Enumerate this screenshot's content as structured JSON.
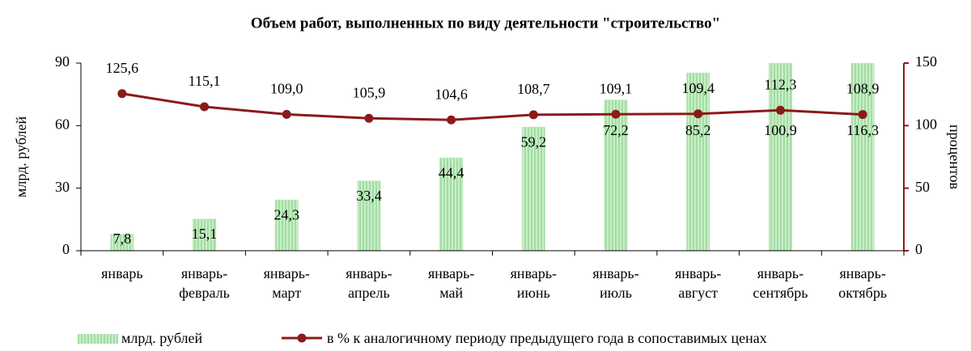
{
  "chart_data": {
    "type": "bar_line",
    "title": "Объем работ, выполненных по виду деятельности \"строительство\"",
    "ylabel": "млрд. рублей",
    "y2label": "процентов",
    "categories": [
      [
        "январь"
      ],
      [
        "январь-",
        "февраль"
      ],
      [
        "январь-",
        "март"
      ],
      [
        "январь-",
        "апрель"
      ],
      [
        "январь-",
        "май"
      ],
      [
        "январь-",
        "июнь"
      ],
      [
        "январь-",
        "июль"
      ],
      [
        "январь-",
        "август"
      ],
      [
        "январь-",
        "сентябрь"
      ],
      [
        "январь-",
        "октябрь"
      ]
    ],
    "series": [
      {
        "name": "млрд. рублей",
        "type": "bar",
        "color": "#b5e6b5",
        "values": [
          7.8,
          15.1,
          24.3,
          33.4,
          44.4,
          59.2,
          72.2,
          85.2,
          100.9,
          116.3
        ],
        "value_labels": [
          "7,8",
          "15,1",
          "24,3",
          "33,4",
          "44,4",
          "59,2",
          "72,2",
          "85,2",
          "100,9",
          "116,3"
        ]
      },
      {
        "name": "в % к аналогичному  периоду предыдущего  года в сопоставимых  ценах",
        "type": "line",
        "axis": "y2",
        "color": "#8b1a1a",
        "values": [
          125.6,
          115.1,
          109.0,
          105.9,
          104.6,
          108.7,
          109.1,
          109.4,
          112.3,
          108.9
        ],
        "value_labels": [
          "125,6",
          "115,1",
          "109,0",
          "105,9",
          "104,6",
          "108,7",
          "109,1",
          "109,4",
          "112,3",
          "108,9"
        ]
      }
    ],
    "ylim": [
      0,
      90
    ],
    "yticks": [
      0,
      30,
      60,
      90
    ],
    "y2lim": [
      0,
      150
    ],
    "y2ticks": [
      0,
      50,
      100,
      150
    ]
  }
}
